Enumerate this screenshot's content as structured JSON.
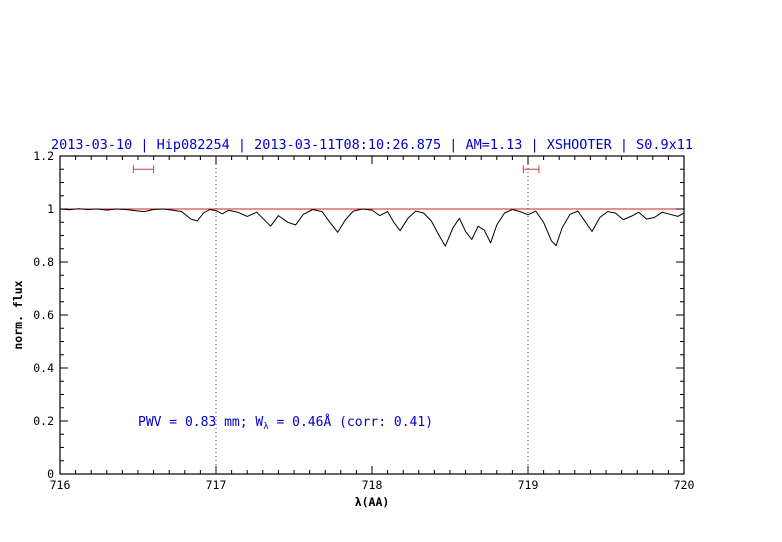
{
  "chart_data": {
    "type": "line",
    "title": "2013-03-10 | Hip082254 | 2013-03-11T08:10:26.875 | AM=1.13 | XSHOOTER | S0.9x11",
    "xlabel": "λ(AA)",
    "ylabel": "norm. flux",
    "xlim": [
      716,
      720
    ],
    "ylim": [
      0,
      1.2
    ],
    "grid": false,
    "x_tick_values": [
      716,
      717,
      718,
      719,
      720
    ],
    "x_tick_labels": [
      "716",
      "717",
      "718",
      "719",
      "720"
    ],
    "x_minor_step": 0.1,
    "y_tick_values": [
      0,
      0.2,
      0.4,
      0.6,
      0.8,
      1,
      1.2
    ],
    "y_tick_labels": [
      "0",
      "0.2",
      "0.4",
      "0.6",
      "0.8",
      "1",
      "1.2"
    ],
    "y_minor_step": 0.05,
    "colors": {
      "title": "#0000cc",
      "annotation": "#0000cc",
      "spectrum": "#000000",
      "reference": "#cc2222",
      "frame": "#000000"
    },
    "dotted_vlines": [
      717,
      719
    ],
    "reference_line": {
      "y": 1.0,
      "color": "#cc2222"
    },
    "error_bars": [
      {
        "x_from": 716.47,
        "x_to": 716.6,
        "y": 1.15,
        "color": "#cc4444"
      },
      {
        "x_from": 718.97,
        "x_to": 719.07,
        "y": 1.15,
        "color": "#cc4444"
      }
    ],
    "annotation": {
      "prefix": "PWV = 0.83 mm; W",
      "sub": "λ",
      "suffix": " = 0.46Å (corr: 0.41)",
      "x": 716.5,
      "y": 0.2,
      "color": "#0000cc"
    },
    "series": [
      {
        "name": "spectrum",
        "color": "#000000",
        "points": [
          [
            716.0,
            1.0
          ],
          [
            716.06,
            0.997
          ],
          [
            716.12,
            1.001
          ],
          [
            716.18,
            0.998
          ],
          [
            716.24,
            1.0
          ],
          [
            716.3,
            0.996
          ],
          [
            716.36,
            1.0
          ],
          [
            716.42,
            0.998
          ],
          [
            716.48,
            0.994
          ],
          [
            716.54,
            0.99
          ],
          [
            716.6,
            0.998
          ],
          [
            716.66,
            1.0
          ],
          [
            716.72,
            0.996
          ],
          [
            716.78,
            0.99
          ],
          [
            716.84,
            0.962
          ],
          [
            716.88,
            0.955
          ],
          [
            716.92,
            0.985
          ],
          [
            716.96,
            0.998
          ],
          [
            717.0,
            0.994
          ],
          [
            717.04,
            0.982
          ],
          [
            717.08,
            0.995
          ],
          [
            717.14,
            0.988
          ],
          [
            717.2,
            0.972
          ],
          [
            717.26,
            0.988
          ],
          [
            717.3,
            0.965
          ],
          [
            717.35,
            0.935
          ],
          [
            717.4,
            0.975
          ],
          [
            717.46,
            0.95
          ],
          [
            717.51,
            0.94
          ],
          [
            717.56,
            0.98
          ],
          [
            717.62,
            0.998
          ],
          [
            717.68,
            0.99
          ],
          [
            717.73,
            0.95
          ],
          [
            717.78,
            0.912
          ],
          [
            717.83,
            0.96
          ],
          [
            717.88,
            0.992
          ],
          [
            717.94,
            1.0
          ],
          [
            718.0,
            0.996
          ],
          [
            718.05,
            0.975
          ],
          [
            718.1,
            0.99
          ],
          [
            718.14,
            0.95
          ],
          [
            718.18,
            0.918
          ],
          [
            718.23,
            0.965
          ],
          [
            718.28,
            0.992
          ],
          [
            718.33,
            0.985
          ],
          [
            718.38,
            0.955
          ],
          [
            718.43,
            0.9
          ],
          [
            718.47,
            0.86
          ],
          [
            718.52,
            0.93
          ],
          [
            718.56,
            0.965
          ],
          [
            718.6,
            0.915
          ],
          [
            718.64,
            0.885
          ],
          [
            718.68,
            0.935
          ],
          [
            718.72,
            0.92
          ],
          [
            718.76,
            0.872
          ],
          [
            718.8,
            0.94
          ],
          [
            718.85,
            0.985
          ],
          [
            718.9,
            0.998
          ],
          [
            718.95,
            0.99
          ],
          [
            719.0,
            0.978
          ],
          [
            719.05,
            0.992
          ],
          [
            719.1,
            0.95
          ],
          [
            719.15,
            0.88
          ],
          [
            719.18,
            0.862
          ],
          [
            719.22,
            0.93
          ],
          [
            719.27,
            0.98
          ],
          [
            719.32,
            0.992
          ],
          [
            719.37,
            0.95
          ],
          [
            719.41,
            0.915
          ],
          [
            719.46,
            0.968
          ],
          [
            719.51,
            0.99
          ],
          [
            719.56,
            0.985
          ],
          [
            719.61,
            0.96
          ],
          [
            719.66,
            0.972
          ],
          [
            719.71,
            0.988
          ],
          [
            719.76,
            0.962
          ],
          [
            719.81,
            0.968
          ],
          [
            719.86,
            0.988
          ],
          [
            719.91,
            0.98
          ],
          [
            719.96,
            0.972
          ],
          [
            720.0,
            0.985
          ]
        ]
      }
    ]
  }
}
